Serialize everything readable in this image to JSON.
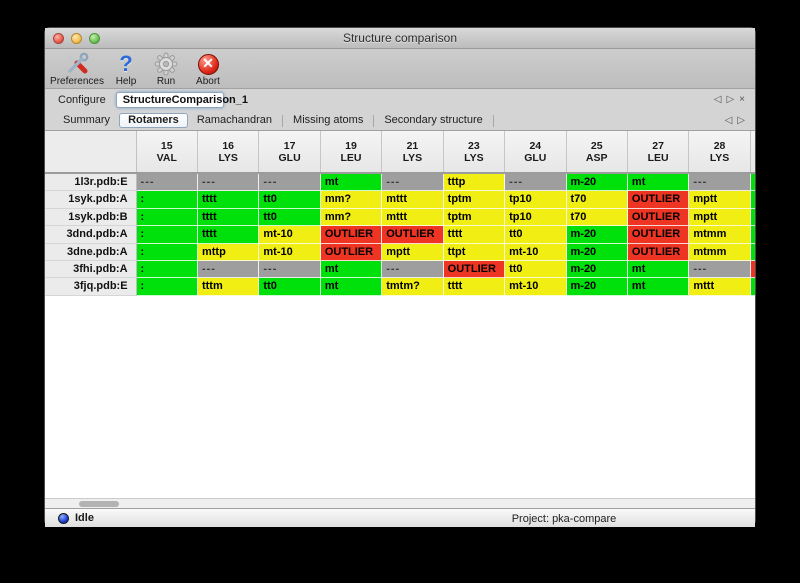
{
  "window": {
    "title": "Structure comparison"
  },
  "toolbar": [
    {
      "label": "Preferences",
      "icon": "preferences-tools-icon"
    },
    {
      "label": "Help",
      "icon": "help-question-icon"
    },
    {
      "label": "Run",
      "icon": "run-gear-icon"
    },
    {
      "label": "Abort",
      "icon": "abort-icon"
    }
  ],
  "configure": {
    "label": "Configure",
    "value": "StructureComparison_1"
  },
  "nav": {
    "prev": "◁",
    "next": "▷",
    "close": "×"
  },
  "tabs": [
    {
      "label": "Summary",
      "selected": false
    },
    {
      "label": "Rotamers",
      "selected": true
    },
    {
      "label": "Ramachandran",
      "selected": false
    },
    {
      "label": "Missing atoms",
      "selected": false
    },
    {
      "label": "Secondary structure",
      "selected": false
    }
  ],
  "tab_dividers_after": [
    "Ramachandran",
    "Missing atoms",
    "Secondary structure"
  ],
  "table": {
    "columns": [
      {
        "num": "15",
        "res": "VAL"
      },
      {
        "num": "16",
        "res": "LYS"
      },
      {
        "num": "17",
        "res": "GLU"
      },
      {
        "num": "19",
        "res": "LEU"
      },
      {
        "num": "21",
        "res": "LYS"
      },
      {
        "num": "23",
        "res": "LYS"
      },
      {
        "num": "24",
        "res": "GLU"
      },
      {
        "num": "25",
        "res": "ASP"
      },
      {
        "num": "27",
        "res": "LEU"
      },
      {
        "num": "28",
        "res": "LYS"
      }
    ],
    "rows": [
      {
        "label": "1l3r.pdb:E",
        "cells": [
          [
            "---",
            "gray"
          ],
          [
            "---",
            "gray"
          ],
          [
            "---",
            "gray"
          ],
          [
            "mt",
            "green"
          ],
          [
            "---",
            "gray"
          ],
          [
            "tttp",
            "yellow"
          ],
          [
            "---",
            "gray"
          ],
          [
            "m-20",
            "green"
          ],
          [
            "mt",
            "green"
          ],
          [
            "---",
            "gray"
          ]
        ],
        "extra": "green"
      },
      {
        "label": "1syk.pdb:A",
        "cells": [
          [
            ":",
            "green"
          ],
          [
            "tttt",
            "green"
          ],
          [
            "tt0",
            "green"
          ],
          [
            "mm?",
            "yellow"
          ],
          [
            "mttt",
            "yellow"
          ],
          [
            "tptm",
            "yellow"
          ],
          [
            "tp10",
            "yellow"
          ],
          [
            "t70",
            "yellow"
          ],
          [
            "OUTLIER",
            "red"
          ],
          [
            "mptt",
            "yellow"
          ]
        ],
        "extra": "green"
      },
      {
        "label": "1syk.pdb:B",
        "cells": [
          [
            ":",
            "green"
          ],
          [
            "tttt",
            "green"
          ],
          [
            "tt0",
            "green"
          ],
          [
            "mm?",
            "yellow"
          ],
          [
            "mttt",
            "yellow"
          ],
          [
            "tptm",
            "yellow"
          ],
          [
            "tp10",
            "yellow"
          ],
          [
            "t70",
            "yellow"
          ],
          [
            "OUTLIER",
            "red"
          ],
          [
            "mptt",
            "yellow"
          ]
        ],
        "extra": "green"
      },
      {
        "label": "3dnd.pdb:A",
        "cells": [
          [
            ":",
            "green"
          ],
          [
            "tttt",
            "green"
          ],
          [
            "mt-10",
            "yellow"
          ],
          [
            "OUTLIER",
            "red"
          ],
          [
            "OUTLIER",
            "red"
          ],
          [
            "tttt",
            "yellow"
          ],
          [
            "tt0",
            "yellow"
          ],
          [
            "m-20",
            "green"
          ],
          [
            "OUTLIER",
            "red"
          ],
          [
            "mtmm",
            "yellow"
          ]
        ],
        "extra": "green"
      },
      {
        "label": "3dne.pdb:A",
        "cells": [
          [
            ":",
            "green"
          ],
          [
            "mttp",
            "yellow"
          ],
          [
            "mt-10",
            "yellow"
          ],
          [
            "OUTLIER",
            "red"
          ],
          [
            "mptt",
            "yellow"
          ],
          [
            "ttpt",
            "yellow"
          ],
          [
            "mt-10",
            "yellow"
          ],
          [
            "m-20",
            "green"
          ],
          [
            "OUTLIER",
            "red"
          ],
          [
            "mtmm",
            "yellow"
          ]
        ],
        "extra": "green"
      },
      {
        "label": "3fhi.pdb:A",
        "cells": [
          [
            ":",
            "green"
          ],
          [
            "---",
            "gray"
          ],
          [
            "---",
            "gray"
          ],
          [
            "mt",
            "green"
          ],
          [
            "---",
            "gray"
          ],
          [
            "OUTLIER",
            "red"
          ],
          [
            "tt0",
            "yellow"
          ],
          [
            "m-20",
            "green"
          ],
          [
            "mt",
            "green"
          ],
          [
            "---",
            "gray"
          ]
        ],
        "extra": "red"
      },
      {
        "label": "3fjq.pdb:E",
        "cells": [
          [
            ":",
            "green"
          ],
          [
            "tttm",
            "yellow"
          ],
          [
            "tt0",
            "green"
          ],
          [
            "mt",
            "green"
          ],
          [
            "tmtm?",
            "yellow"
          ],
          [
            "tttt",
            "yellow"
          ],
          [
            "mt-10",
            "yellow"
          ],
          [
            "m-20",
            "green"
          ],
          [
            "mt",
            "green"
          ],
          [
            "mttt",
            "yellow"
          ]
        ],
        "extra": "green"
      }
    ]
  },
  "statusbar": {
    "status": "Idle",
    "project": "Project: pka-compare"
  },
  "colors": {
    "green": "#00e00a",
    "yellow": "#f1ee14",
    "red": "#ee3423",
    "gray": "#9e9e9e"
  }
}
